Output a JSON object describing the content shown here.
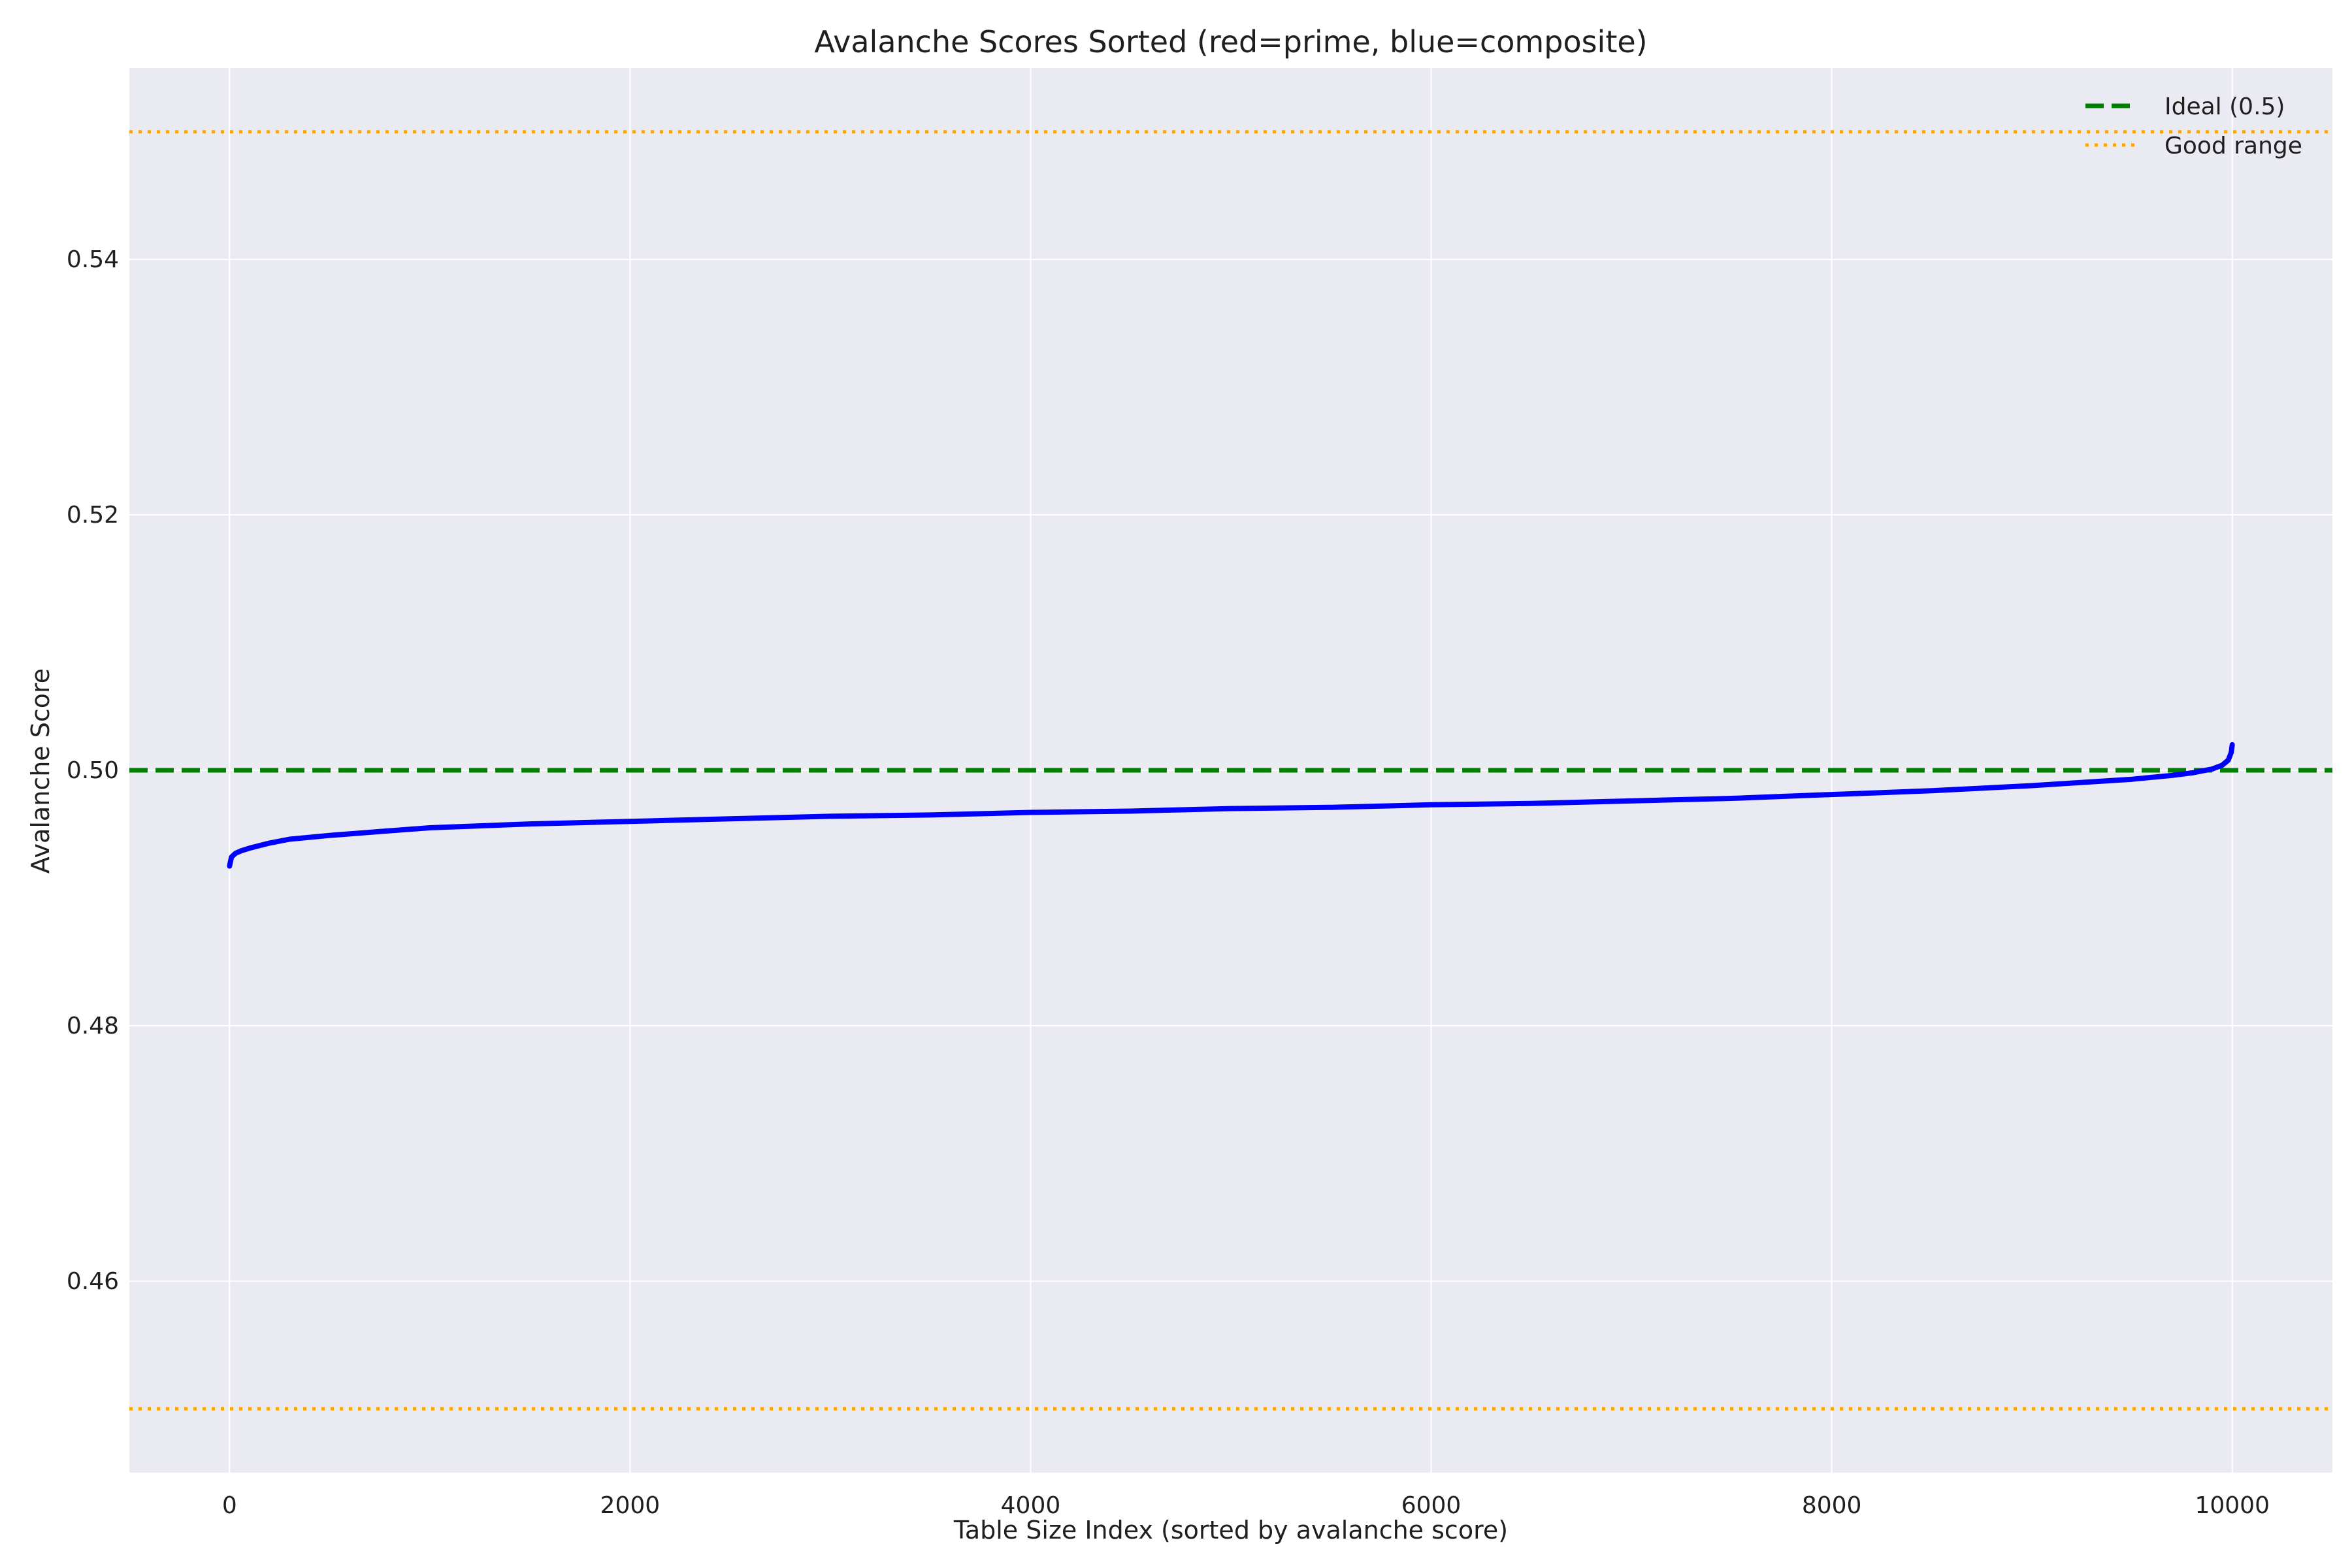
{
  "chart_data": {
    "type": "line",
    "title": "Avalanche Scores Sorted (red=prime, blue=composite)",
    "xlabel": "Table Size Index (sorted by avalanche score)",
    "ylabel": "Avalanche Score",
    "xlim": [
      -500,
      10500
    ],
    "ylim": [
      0.445,
      0.555
    ],
    "xticks": [
      0,
      2000,
      4000,
      6000,
      8000,
      10000
    ],
    "xtick_labels": [
      "0",
      "2000",
      "4000",
      "6000",
      "8000",
      "10000"
    ],
    "yticks": [
      0.46,
      0.48,
      0.5,
      0.52,
      0.54
    ],
    "ytick_labels": [
      "0.46",
      "0.48",
      "0.50",
      "0.52",
      "0.54"
    ],
    "grid": true,
    "legend_position": "top-right",
    "colors": {
      "plot_background": "#eaeaf2",
      "grid": "#ffffff",
      "series": "#0000ff",
      "ideal": "#008000",
      "good_range": "#ffa500"
    },
    "reference_lines": [
      {
        "name": "Ideal (0.5)",
        "y": 0.5,
        "style": "dashed",
        "color": "#008000"
      },
      {
        "name": "Good range",
        "y": 0.45,
        "style": "dotted",
        "color": "#ffa500"
      },
      {
        "name": "Good range",
        "y": 0.55,
        "style": "dotted",
        "color": "#ffa500"
      }
    ],
    "legend": [
      "Ideal (0.5)",
      "Good range"
    ],
    "series": [
      {
        "color": "#0000ff",
        "x": [
          0,
          10,
          30,
          60,
          100,
          150,
          200,
          300,
          500,
          750,
          1000,
          1500,
          2000,
          2500,
          3000,
          3500,
          4000,
          4500,
          5000,
          5500,
          6000,
          6500,
          7000,
          7500,
          8000,
          8500,
          9000,
          9300,
          9500,
          9700,
          9800,
          9900,
          9950,
          9980,
          9995,
          10000
        ],
        "y": [
          0.4925,
          0.4932,
          0.4935,
          0.4937,
          0.4939,
          0.4941,
          0.4943,
          0.4946,
          0.4949,
          0.4952,
          0.4955,
          0.4958,
          0.496,
          0.4962,
          0.4964,
          0.4965,
          0.4967,
          0.4968,
          0.497,
          0.4971,
          0.4973,
          0.4974,
          0.4976,
          0.4978,
          0.4981,
          0.4984,
          0.4988,
          0.4991,
          0.4993,
          0.4996,
          0.4998,
          0.5001,
          0.5004,
          0.5008,
          0.5014,
          0.502
        ]
      }
    ]
  }
}
